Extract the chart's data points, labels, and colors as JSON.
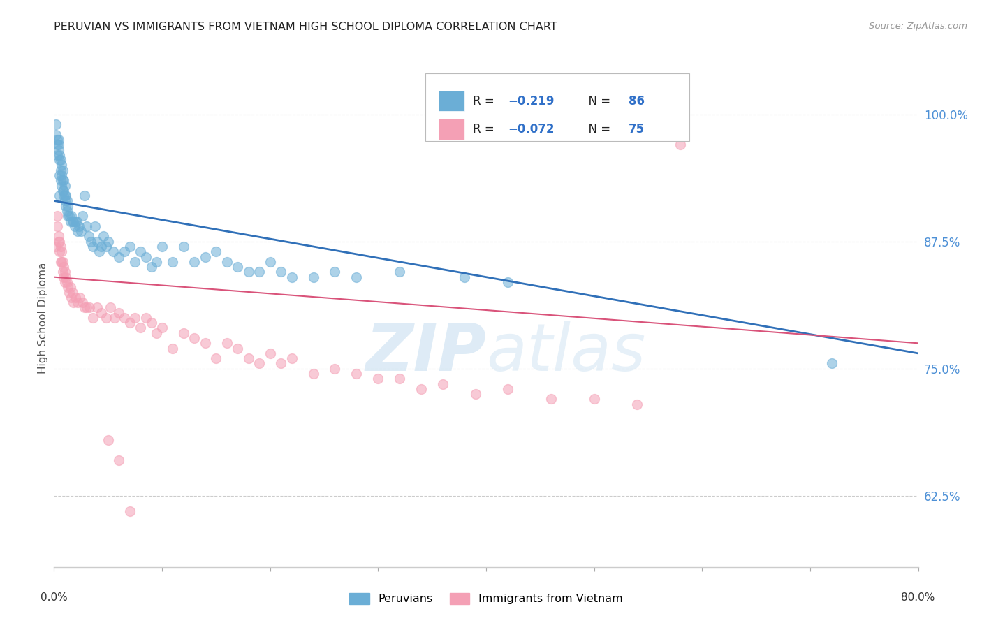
{
  "title": "PERUVIAN VS IMMIGRANTS FROM VIETNAM HIGH SCHOOL DIPLOMA CORRELATION CHART",
  "source": "Source: ZipAtlas.com",
  "ylabel": "High School Diploma",
  "ytick_labels": [
    "62.5%",
    "75.0%",
    "87.5%",
    "100.0%"
  ],
  "ytick_values": [
    0.625,
    0.75,
    0.875,
    1.0
  ],
  "xlim": [
    0.0,
    0.8
  ],
  "ylim": [
    0.555,
    1.045
  ],
  "blue_color": "#6baed6",
  "pink_color": "#f4a0b5",
  "blue_line_color": "#3070b8",
  "pink_line_color": "#d9537a",
  "watermark_zip": "ZIP",
  "watermark_atlas": "atlas",
  "peruvians_x": [
    0.002,
    0.002,
    0.003,
    0.003,
    0.003,
    0.004,
    0.004,
    0.004,
    0.005,
    0.005,
    0.005,
    0.005,
    0.006,
    0.006,
    0.006,
    0.007,
    0.007,
    0.007,
    0.008,
    0.008,
    0.008,
    0.009,
    0.009,
    0.009,
    0.01,
    0.01,
    0.01,
    0.011,
    0.011,
    0.012,
    0.012,
    0.013,
    0.013,
    0.014,
    0.015,
    0.016,
    0.017,
    0.018,
    0.019,
    0.02,
    0.021,
    0.022,
    0.023,
    0.025,
    0.026,
    0.028,
    0.03,
    0.032,
    0.034,
    0.036,
    0.038,
    0.04,
    0.042,
    0.044,
    0.046,
    0.048,
    0.05,
    0.055,
    0.06,
    0.065,
    0.07,
    0.075,
    0.08,
    0.085,
    0.09,
    0.095,
    0.1,
    0.11,
    0.12,
    0.13,
    0.14,
    0.15,
    0.16,
    0.17,
    0.18,
    0.19,
    0.2,
    0.21,
    0.22,
    0.24,
    0.26,
    0.28,
    0.32,
    0.38,
    0.42,
    0.72
  ],
  "peruvians_y": [
    0.98,
    0.99,
    0.96,
    0.97,
    0.975,
    0.965,
    0.97,
    0.975,
    0.92,
    0.94,
    0.955,
    0.96,
    0.935,
    0.945,
    0.955,
    0.93,
    0.94,
    0.95,
    0.925,
    0.935,
    0.945,
    0.92,
    0.925,
    0.935,
    0.915,
    0.92,
    0.93,
    0.91,
    0.92,
    0.905,
    0.915,
    0.9,
    0.91,
    0.9,
    0.895,
    0.9,
    0.895,
    0.895,
    0.89,
    0.895,
    0.895,
    0.885,
    0.89,
    0.885,
    0.9,
    0.92,
    0.89,
    0.88,
    0.875,
    0.87,
    0.89,
    0.875,
    0.865,
    0.87,
    0.88,
    0.87,
    0.875,
    0.865,
    0.86,
    0.865,
    0.87,
    0.855,
    0.865,
    0.86,
    0.85,
    0.855,
    0.87,
    0.855,
    0.87,
    0.855,
    0.86,
    0.865,
    0.855,
    0.85,
    0.845,
    0.845,
    0.855,
    0.845,
    0.84,
    0.84,
    0.845,
    0.84,
    0.845,
    0.84,
    0.835,
    0.755
  ],
  "vietnam_x": [
    0.002,
    0.003,
    0.003,
    0.004,
    0.004,
    0.005,
    0.005,
    0.006,
    0.006,
    0.007,
    0.007,
    0.008,
    0.008,
    0.009,
    0.009,
    0.01,
    0.01,
    0.011,
    0.012,
    0.013,
    0.014,
    0.015,
    0.016,
    0.017,
    0.018,
    0.02,
    0.022,
    0.024,
    0.026,
    0.028,
    0.03,
    0.033,
    0.036,
    0.04,
    0.044,
    0.048,
    0.052,
    0.056,
    0.06,
    0.065,
    0.07,
    0.075,
    0.08,
    0.085,
    0.09,
    0.095,
    0.1,
    0.11,
    0.12,
    0.13,
    0.14,
    0.15,
    0.16,
    0.17,
    0.18,
    0.19,
    0.2,
    0.21,
    0.22,
    0.24,
    0.26,
    0.28,
    0.3,
    0.32,
    0.34,
    0.36,
    0.39,
    0.42,
    0.46,
    0.5,
    0.54,
    0.58,
    0.05,
    0.06,
    0.07
  ],
  "vietnam_y": [
    0.87,
    0.89,
    0.9,
    0.875,
    0.88,
    0.865,
    0.875,
    0.855,
    0.87,
    0.855,
    0.865,
    0.845,
    0.855,
    0.84,
    0.85,
    0.835,
    0.845,
    0.84,
    0.835,
    0.83,
    0.825,
    0.83,
    0.82,
    0.825,
    0.815,
    0.82,
    0.815,
    0.82,
    0.815,
    0.81,
    0.81,
    0.81,
    0.8,
    0.81,
    0.805,
    0.8,
    0.81,
    0.8,
    0.805,
    0.8,
    0.795,
    0.8,
    0.79,
    0.8,
    0.795,
    0.785,
    0.79,
    0.77,
    0.785,
    0.78,
    0.775,
    0.76,
    0.775,
    0.77,
    0.76,
    0.755,
    0.765,
    0.755,
    0.76,
    0.745,
    0.75,
    0.745,
    0.74,
    0.74,
    0.73,
    0.735,
    0.725,
    0.73,
    0.72,
    0.72,
    0.715,
    0.97,
    0.68,
    0.66,
    0.61
  ]
}
